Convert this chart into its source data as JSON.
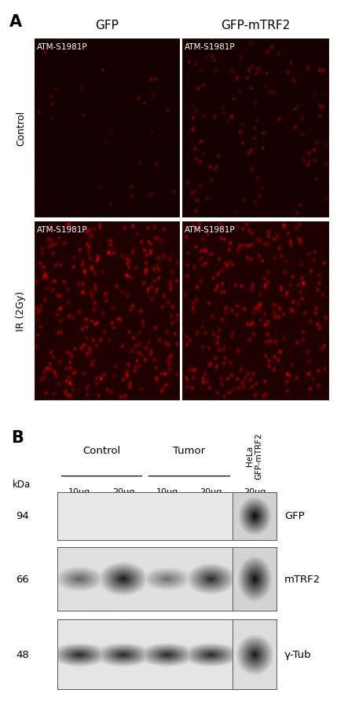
{
  "panel_A_label": "A",
  "panel_B_label": "B",
  "col_labels": [
    "GFP",
    "GFP-mTRF2"
  ],
  "row_labels_A": [
    "Control",
    "IR (2Gy)"
  ],
  "image_label": "ATM-S1981P",
  "wb_group_labels": [
    "Control",
    "Tumor"
  ],
  "wb_lane_labels": [
    "10μg",
    "20μg",
    "10μg",
    "20μg",
    "20μg"
  ],
  "wb_hela_label": "HeLa\nGFP-mTRF2\n20μg",
  "wb_kda_label": "kDa",
  "wb_markers": [
    "94",
    "66",
    "48"
  ],
  "wb_band_labels": [
    "GFP",
    "mTRF2",
    "γ-Tub"
  ],
  "bg_color": "#ffffff",
  "text_color_white": "#ffffff",
  "text_color_black": "#000000"
}
